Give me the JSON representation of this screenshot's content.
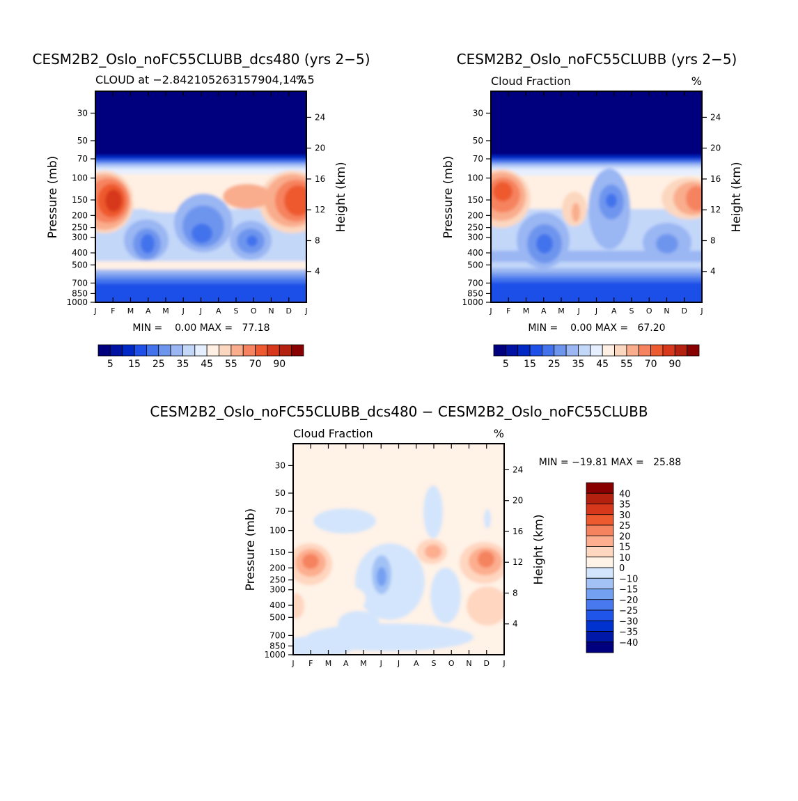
{
  "months": [
    "J",
    "F",
    "M",
    "A",
    "M",
    "J",
    "J",
    "A",
    "S",
    "O",
    "N",
    "D",
    "J"
  ],
  "pressure_ticks": [
    {
      "value": 30,
      "label": "30"
    },
    {
      "value": 50,
      "label": "50"
    },
    {
      "value": 70,
      "label": "70"
    },
    {
      "value": 100,
      "label": "100"
    },
    {
      "value": 150,
      "label": "150"
    },
    {
      "value": 200,
      "label": "200"
    },
    {
      "value": 250,
      "label": "250"
    },
    {
      "value": 300,
      "label": "300"
    },
    {
      "value": 400,
      "label": "400"
    },
    {
      "value": 500,
      "label": "500"
    },
    {
      "value": 700,
      "label": "700"
    },
    {
      "value": 850,
      "label": "850"
    },
    {
      "value": 1000,
      "label": "1000"
    }
  ],
  "colors": {
    "abs_levels": [
      "#00007f",
      "#0012a3",
      "#0028c5",
      "#1e50e8",
      "#4373ec",
      "#6e95ee",
      "#9ab6f3",
      "#c3d7f9",
      "#e6efff",
      "#fff0e3",
      "#fcd7bf",
      "#f9ad8d",
      "#f6835f",
      "#ee5a2f",
      "#d7381c",
      "#b4210f",
      "#880000"
    ],
    "diff_levels": [
      "#00007f",
      "#0018a8",
      "#0032cf",
      "#1f55e9",
      "#4979ee",
      "#74a0f2",
      "#a2c2f6",
      "#d3e5fc",
      "#fff2e6",
      "#ffd6c0",
      "#fcae8f",
      "#f5835f",
      "#ee5a2f",
      "#d7381c",
      "#b4210f",
      "#880000"
    ]
  },
  "panels": [
    {
      "id": "top-left",
      "title": "CESM2B2_Oslo_noFC55CLUBB_dcs480 (yrs 2−5)",
      "subtitle_left": "CLOUD at −2.842105263157904,147.5",
      "subtitle_right": "%",
      "ylabel": "Pressure (mb)",
      "ylabel_right": "Height (km)",
      "stats": "MIN =    0.00 MAX =   77.18",
      "height_ticks": [
        "4",
        "8",
        "12",
        "16",
        "20",
        "24"
      ],
      "colorbar_labels": [
        "5",
        "15",
        "25",
        "35",
        "45",
        "55",
        "70",
        "90"
      ]
    },
    {
      "id": "top-right",
      "title": "CESM2B2_Oslo_noFC55CLUBB (yrs 2−5)",
      "subtitle_left": "Cloud Fraction",
      "subtitle_right": "%",
      "ylabel": "Pressure (mb)",
      "ylabel_right": "Height (km)",
      "stats": "MIN =    0.00 MAX =   67.20",
      "height_ticks": [
        "4",
        "8",
        "12",
        "16",
        "20",
        "24"
      ],
      "colorbar_labels": [
        "5",
        "15",
        "25",
        "35",
        "45",
        "55",
        "70",
        "90"
      ]
    },
    {
      "id": "bottom",
      "title": "CESM2B2_Oslo_noFC55CLUBB_dcs480 − CESM2B2_Oslo_noFC55CLUBB",
      "subtitle_left": "Cloud Fraction",
      "subtitle_right": "%",
      "ylabel": "Pressure (mb)",
      "ylabel_right": "Height (km)",
      "stats": "MIN = −19.81 MAX =   25.88",
      "height_ticks": [
        "4",
        "8",
        "12",
        "16",
        "20",
        "24"
      ],
      "colorbar_labels": [
        "40",
        "35",
        "30",
        "25",
        "20",
        "15",
        "10",
        "0",
        "−10",
        "−15",
        "−20",
        "−25",
        "−30",
        "−35",
        "−40"
      ]
    }
  ],
  "chart_data": [
    {
      "type": "heatmap",
      "title": "CESM2B2_Oslo_noFC55CLUBB_dcs480 (yrs 2−5)",
      "subtitle": "CLOUD at −2.842105263157904,147.5",
      "units": "%",
      "xlabel": "",
      "ylabel": "Pressure (mb)",
      "ylabel_right": "Height (km)",
      "y_scale": "log",
      "ylim": [
        1000,
        20
      ],
      "x": [
        "J",
        "F",
        "M",
        "A",
        "M",
        "J",
        "J",
        "A",
        "S",
        "O",
        "N",
        "D",
        "J"
      ],
      "min": 0.0,
      "max": 77.18,
      "contour_levels": [
        5,
        10,
        15,
        20,
        25,
        30,
        35,
        40,
        45,
        50,
        55,
        60,
        70,
        80,
        90
      ],
      "features": [
        {
          "label": "upper-level cloud maximum",
          "month": "F",
          "pressure": 180,
          "value": 72
        },
        {
          "label": "upper-level cloud maximum",
          "month": "D",
          "pressure": 180,
          "value": 70
        },
        {
          "label": "minimum",
          "month": "A",
          "pressure": 380,
          "value": 22
        },
        {
          "label": "minimum",
          "month": "J",
          "pressure": 320,
          "value": 22
        },
        {
          "label": "minimum",
          "month": "O",
          "pressure": 370,
          "value": 22
        },
        {
          "label": "stratosphere",
          "month": "all",
          "pressure": 30,
          "value": 0
        }
      ]
    },
    {
      "type": "heatmap",
      "title": "CESM2B2_Oslo_noFC55CLUBB (yrs 2−5)",
      "subtitle": "Cloud Fraction",
      "units": "%",
      "xlabel": "",
      "ylabel": "Pressure (mb)",
      "ylabel_right": "Height (km)",
      "y_scale": "log",
      "ylim": [
        1000,
        20
      ],
      "x": [
        "J",
        "F",
        "M",
        "A",
        "M",
        "J",
        "J",
        "A",
        "S",
        "O",
        "N",
        "D",
        "J"
      ],
      "min": 0.0,
      "max": 67.2,
      "contour_levels": [
        5,
        10,
        15,
        20,
        25,
        30,
        35,
        40,
        45,
        50,
        55,
        60,
        70,
        80,
        90
      ],
      "features": [
        {
          "label": "upper-level cloud maximum",
          "month": "F",
          "pressure": 160,
          "value": 62
        },
        {
          "label": "upper-level cloud maximum",
          "month": "J",
          "pressure": 170,
          "value": 62
        },
        {
          "label": "minimum",
          "month": "A",
          "pressure": 380,
          "value": 22
        },
        {
          "label": "minimum",
          "month": "A",
          "pressure": 170,
          "value": 22
        },
        {
          "label": "minimum",
          "month": "N",
          "pressure": 380,
          "value": 25
        },
        {
          "label": "stratosphere",
          "month": "all",
          "pressure": 30,
          "value": 0
        }
      ]
    },
    {
      "type": "heatmap",
      "title": "CESM2B2_Oslo_noFC55CLUBB_dcs480 − CESM2B2_Oslo_noFC55CLUBB",
      "subtitle": "Cloud Fraction",
      "units": "%",
      "xlabel": "",
      "ylabel": "Pressure (mb)",
      "ylabel_right": "Height (km)",
      "y_scale": "log",
      "ylim": [
        1000,
        20
      ],
      "x": [
        "J",
        "F",
        "M",
        "A",
        "M",
        "J",
        "J",
        "A",
        "S",
        "O",
        "N",
        "D",
        "J"
      ],
      "min": -19.81,
      "max": 25.88,
      "contour_levels": [
        -40,
        -35,
        -30,
        -25,
        -20,
        -15,
        -10,
        0,
        10,
        15,
        20,
        25,
        30,
        35,
        40
      ],
      "features": [
        {
          "label": "positive difference",
          "month": "F",
          "pressure": 200,
          "value": 22
        },
        {
          "label": "positive difference",
          "month": "D",
          "pressure": 200,
          "value": 24
        },
        {
          "label": "positive difference",
          "month": "S",
          "pressure": 160,
          "value": 14
        },
        {
          "label": "positive difference",
          "month": "D",
          "pressure": 430,
          "value": 12
        },
        {
          "label": "negative difference",
          "month": "J",
          "pressure": 250,
          "value": -15
        },
        {
          "label": "negative difference",
          "month": "O",
          "pressure": 400,
          "value": -5
        },
        {
          "label": "negative difference",
          "month": "S",
          "pressure": 60,
          "value": -5
        },
        {
          "label": "background",
          "month": "all",
          "pressure": 30,
          "value": 2
        }
      ]
    }
  ]
}
